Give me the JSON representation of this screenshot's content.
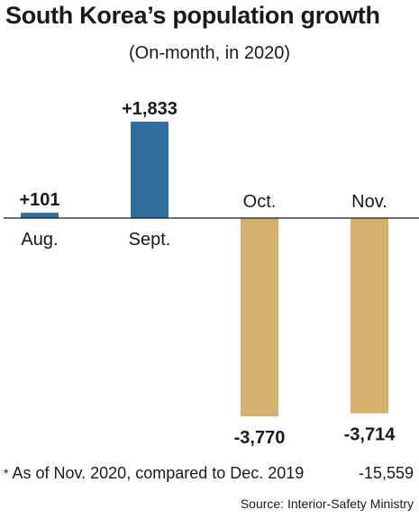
{
  "title": "South Korea’s population growth",
  "subtitle": "(On-month, in 2020)",
  "chart_data": {
    "type": "bar",
    "categories": [
      "Aug.",
      "Sept.",
      "Oct.",
      "Nov."
    ],
    "values": [
      101,
      1833,
      -3770,
      -3714
    ],
    "data_labels": [
      "+101",
      "+1,833",
      "-3,770",
      "-3,714"
    ],
    "positive_color": "#2f6e9e",
    "negative_color": "#d6b06f",
    "grid": false,
    "legend": "none"
  },
  "footnote": {
    "marker": "*",
    "text": "As of Nov. 2020, compared to Dec. 2019",
    "value": "-15,559"
  },
  "source": "Source: Interior-Safety Ministry"
}
